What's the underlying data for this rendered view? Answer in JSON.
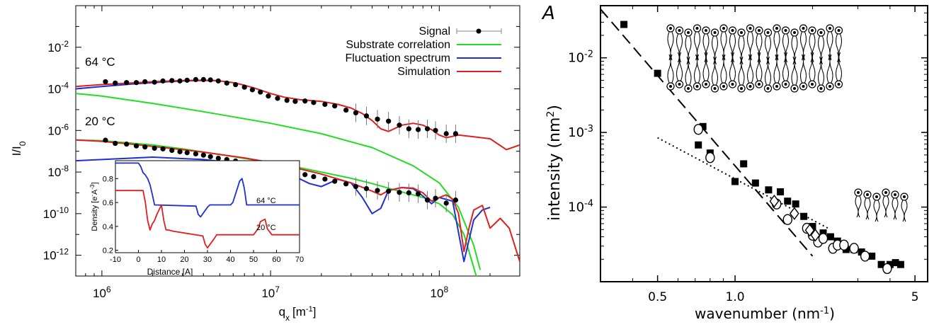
{
  "chart_data": [
    {
      "type": "scatter",
      "xlabel": "q",
      "xlabel_sub": "x",
      "xlabel_unit": "[m",
      "xlabel_unit_sup": "-1",
      "xlabel_close": "]",
      "ylabel": "I/I",
      "ylabel_sub": "0",
      "x_scale": "log",
      "y_scale": "log",
      "xlim": [
        700000,
        300000000
      ],
      "ylim": [
        1e-13,
        1
      ],
      "x_ticks": [
        {
          "value": 1000000,
          "base": "10",
          "exp": "6"
        },
        {
          "value": 10000000,
          "base": "10",
          "exp": "7"
        },
        {
          "value": 100000000,
          "base": "10",
          "exp": "8"
        }
      ],
      "y_ticks": [
        {
          "value": 0.01,
          "base": "10",
          "exp": "-2"
        },
        {
          "value": 0.0001,
          "base": "10",
          "exp": "-4"
        },
        {
          "value": 1e-06,
          "base": "10",
          "exp": "-6"
        },
        {
          "value": 1e-08,
          "base": "10",
          "exp": "-8"
        },
        {
          "value": 1e-10,
          "base": "10",
          "exp": "-10"
        },
        {
          "value": 1e-12,
          "base": "10",
          "exp": "-12"
        }
      ],
      "legend_position": "top-right",
      "legend": [
        {
          "label": "Signal",
          "color": "#000000",
          "kind": "marker"
        },
        {
          "label": "Substrate correlation",
          "color": "#22dd22",
          "kind": "line"
        },
        {
          "label": "Fluctuation spectrum",
          "color": "#1f2fd0",
          "kind": "line"
        },
        {
          "label": "Simulation",
          "color": "#dd2020",
          "kind": "line"
        }
      ],
      "annotations": [
        {
          "text": "64 °C",
          "x": 950000,
          "y": 0.0011
        },
        {
          "text": "20 °C",
          "x": 950000,
          "y": 1.8e-06
        }
      ],
      "series": [
        {
          "name": "Signal",
          "group": "64 °C",
          "color": "#000000",
          "kind": "points",
          "x": [
            1050000,
            1200000,
            1400000,
            1600000,
            1800000,
            2050000,
            2300000,
            2600000,
            2900000,
            3200000,
            3600000,
            4000000,
            4400000,
            4900000,
            5500000,
            6200000,
            7000000,
            7800000,
            8700000,
            9700000,
            11000000,
            12500000,
            14000000,
            16000000,
            18000000,
            21000000,
            24000000,
            28000000,
            32000000,
            37000000,
            43000000,
            50000000,
            58000000,
            66000000,
            75000000,
            85000000,
            95000000,
            110000000,
            125000000
          ],
          "y": [
            0.00022,
            0.00019,
            0.0002,
            0.0002,
            0.00022,
            0.00021,
            0.00024,
            0.00025,
            0.00024,
            0.00026,
            0.00028,
            0.00028,
            0.00027,
            0.00024,
            0.00019,
            0.00016,
            0.00012,
            9e-05,
            7e-05,
            4.5e-05,
            3.5e-05,
            2.8e-05,
            2.5e-05,
            2.6e-05,
            2.2e-05,
            1.8e-05,
            1.5e-05,
            9.5e-06,
            7e-06,
            5e-06,
            3.5e-06,
            2.8e-06,
            1.8e-06,
            1.2e-06,
            1.1e-06,
            1.2e-06,
            1e-06,
            7e-07,
            7e-07
          ]
        },
        {
          "name": "Signal",
          "group": "20 °C",
          "color": "#000000",
          "kind": "points",
          "x": [
            1050000,
            1200000,
            1400000,
            1600000,
            1800000,
            2050000,
            2300000,
            2600000,
            2900000,
            3200000,
            3600000,
            4000000,
            4400000,
            4900000,
            5500000,
            6200000,
            7000000,
            7800000,
            8700000,
            9700000,
            11000000,
            12500000,
            14000000,
            16000000,
            18000000,
            21000000,
            24000000,
            28000000,
            32000000,
            37000000,
            43000000,
            50000000,
            58000000,
            66000000,
            75000000,
            85000000,
            95000000,
            110000000,
            125000000
          ],
          "y": [
            3.4e-07,
            2.4e-07,
            2.2e-07,
            1.8e-07,
            1.6e-07,
            1.4e-07,
            1.3e-07,
            1.1e-07,
            9.5e-08,
            8.5e-08,
            7.5e-08,
            6.5e-08,
            5.5e-08,
            4.6e-08,
            4e-08,
            3.4e-08,
            2.8e-08,
            2.4e-08,
            2e-08,
            1.7e-08,
            1.4e-08,
            1.15e-08,
            9.5e-09,
            7.5e-09,
            6e-09,
            4.6e-09,
            3.6e-09,
            2.7e-09,
            2e-09,
            1.6e-09,
            1.3e-09,
            1.2e-09,
            1.05e-09,
            1e-09,
            9e-10,
            4.5e-10,
            5.5e-10,
            3.2e-10,
            4.5e-10
          ]
        },
        {
          "name": "Simulation",
          "group": "64 °C",
          "color": "#dd2020",
          "kind": "line",
          "x": [
            700000,
            1000000,
            1500000,
            2000000,
            3000000,
            4000000,
            5000000,
            6000000,
            7000000,
            8000000,
            10000000,
            12000000,
            15000000,
            20000000,
            25000000,
            30000000,
            35000000,
            40000000,
            45000000,
            50000000,
            55000000,
            60000000,
            70000000,
            80000000,
            90000000,
            100000000,
            110000000,
            130000000,
            160000000,
            200000000,
            250000000,
            300000000
          ],
          "y": [
            0.00013,
            0.00016,
            0.00019,
            0.00022,
            0.00025,
            0.00026,
            0.00024,
            0.0002,
            0.00015,
            0.00011,
            6e-05,
            4e-05,
            3e-05,
            2.5e-05,
            1.8e-05,
            1.2e-05,
            6.5e-06,
            3e-06,
            1.2e-06,
            9e-07,
            1.3e-06,
            1.8e-06,
            2.2e-06,
            1.8e-06,
            1.1e-06,
            6e-07,
            4.5e-07,
            6e-07,
            5e-07,
            4e-07,
            1.2e-07,
            2e-07
          ]
        },
        {
          "name": "Fluctuation spectrum",
          "group": "64 °C",
          "color": "#1f2fd0",
          "kind": "line",
          "x": [
            700000,
            1000000,
            1500000,
            2000000,
            3000000,
            4000000,
            5000000
          ],
          "y": [
            0.0001,
            0.00013,
            0.00017,
            0.0002,
            0.00024,
            0.00025,
            0.00025
          ]
        },
        {
          "name": "Substrate correlation",
          "group": "64 °C",
          "color": "#22dd22",
          "kind": "line",
          "x": [
            700000,
            1000000,
            2000000,
            4000000,
            10000000,
            20000000,
            40000000,
            70000000,
            100000000,
            130000000,
            160000000,
            175000000
          ],
          "y": [
            6e-05,
            4.5e-05,
            2e-05,
            8e-06,
            2.2e-06,
            7e-07,
            1.5e-07,
            2e-08,
            3e-09,
            2e-10,
            3e-12,
            2e-13
          ]
        },
        {
          "name": "Simulation",
          "group": "20 °C",
          "color": "#dd2020",
          "kind": "line",
          "x": [
            700000,
            1000000,
            1500000,
            2000000,
            3000000,
            4000000,
            5000000,
            7000000,
            10000000,
            15000000,
            20000000,
            30000000,
            40000000,
            45000000,
            50000000,
            60000000,
            70000000,
            80000000,
            90000000,
            100000000,
            110000000,
            120000000,
            130000000,
            140000000,
            150000000,
            160000000,
            180000000,
            200000000,
            230000000,
            260000000,
            300000000
          ],
          "y": [
            3.5e-07,
            3e-07,
            2.2e-07,
            1.7e-07,
            1.2e-07,
            9e-08,
            7e-08,
            4.8e-08,
            2.9e-08,
            1.4e-08,
            8e-09,
            3e-09,
            1.2e-09,
            8e-10,
            1.3e-09,
            1.8e-09,
            1.7e-09,
            1e-09,
            4e-10,
            6e-10,
            8e-10,
            5e-10,
            1e-10,
            1.5e-12,
            2e-11,
            1.5e-10,
            2.5e-10,
            2e-11,
            6e-11,
            2e-11,
            5e-13
          ]
        },
        {
          "name": "Fluctuation spectrum",
          "group": "20 °C",
          "color": "#1f2fd0",
          "kind": "line",
          "x": [
            700000,
            1000000,
            2000000,
            4000000,
            7000000,
            10000000,
            14000000,
            17000000,
            20000000,
            25000000,
            30000000,
            35000000,
            40000000,
            45000000,
            50000000,
            60000000,
            70000000,
            80000000,
            90000000,
            100000000,
            120000000,
            140000000,
            160000000,
            180000000,
            200000000
          ],
          "y": [
            3.5e-08,
            4e-08,
            5.2e-08,
            4e-08,
            2.5e-08,
            1.5e-08,
            6e-09,
            2.8e-09,
            2e-09,
            4.5e-09,
            3e-09,
            6e-10,
            1e-10,
            1.8e-10,
            1.3e-09,
            1.8e-09,
            1.6e-09,
            7e-10,
            3e-10,
            6e-10,
            4e-10,
            5e-13,
            5e-11,
            1.5e-10,
            2e-10
          ]
        },
        {
          "name": "Substrate correlation",
          "group": "20 °C",
          "color": "#22dd22",
          "kind": "line",
          "x": [
            700000,
            1000000,
            2000000,
            3000000,
            5000000,
            7000000,
            10000000,
            15000000,
            20000000,
            30000000,
            40000000,
            60000000,
            80000000,
            100000000,
            120000000,
            140000000,
            170000000
          ],
          "y": [
            3.5e-07,
            3.2e-07,
            2e-07,
            1.3e-07,
            7e-08,
            4.5e-08,
            3e-08,
            1.6e-08,
            1e-08,
            5e-09,
            2.8e-09,
            1.1e-09,
            6e-10,
            3e-10,
            9e-11,
            1e-11,
            5e-14
          ]
        }
      ],
      "inset": {
        "type": "line",
        "xlabel": "Distance [A]",
        "ylabel_prefix": "Density [e",
        "ylabel_sup1": "-",
        "ylabel_mid": "A",
        "ylabel_sup2": "-3",
        "ylabel_suffix": "]",
        "xlim": [
          -10,
          70
        ],
        "ylim": [
          0.18,
          0.95
        ],
        "x_ticks": [
          "-10",
          "0",
          "10",
          "20",
          "30",
          "40",
          "50",
          "60",
          "70"
        ],
        "y_ticks": [
          "0.2",
          "0.4",
          "0.6",
          "0.8"
        ],
        "series": [
          {
            "name": "64 °C",
            "color": "#1f2fd0",
            "x": [
              -10,
              0,
              1,
              2,
              3,
              4,
              5,
              6,
              7,
              25,
              26,
              27,
              30,
              31,
              33,
              40,
              41,
              43,
              44,
              45,
              46,
              47,
              50,
              70
            ],
            "y": [
              0.93,
              0.93,
              0.9,
              0.85,
              0.83,
              0.8,
              0.75,
              0.67,
              0.58,
              0.57,
              0.5,
              0.48,
              0.56,
              0.58,
              0.58,
              0.58,
              0.6,
              0.72,
              0.78,
              0.8,
              0.72,
              0.58,
              0.58,
              0.58
            ]
          },
          {
            "name": "20 °C",
            "color": "#dd2020",
            "x": [
              -10,
              0,
              2,
              3,
              4,
              5,
              6,
              7,
              8,
              10,
              11,
              12,
              13,
              15,
              28,
              29,
              30,
              33,
              34,
              35,
              50,
              52,
              53,
              55,
              56,
              58,
              70
            ],
            "y": [
              0.7,
              0.7,
              0.7,
              0.6,
              0.45,
              0.37,
              0.42,
              0.45,
              0.5,
              0.58,
              0.45,
              0.37,
              0.37,
              0.36,
              0.32,
              0.25,
              0.22,
              0.3,
              0.33,
              0.33,
              0.33,
              0.38,
              0.44,
              0.46,
              0.38,
              0.33,
              0.33
            ]
          }
        ]
      }
    },
    {
      "type": "scatter",
      "panel_label": "A",
      "xlabel": "wavenumber (nm",
      "xlabel_sup": "-1",
      "xlabel_close": ")",
      "ylabel": "intensity (nm",
      "ylabel_sup": "2",
      "ylabel_close": ")",
      "x_scale": "log",
      "y_scale": "log",
      "xlim": [
        0.3,
        5.6
      ],
      "ylim": [
        1e-05,
        0.05
      ],
      "x_ticks": [
        {
          "value": 0.5,
          "label": "0.5"
        },
        {
          "value": 1.0,
          "label": "1.0"
        },
        {
          "value": 5,
          "label": "5"
        }
      ],
      "y_ticks": [
        {
          "value": 0.01,
          "base": "10",
          "exp": "-2"
        },
        {
          "value": 0.001,
          "base": "10",
          "exp": "-3"
        },
        {
          "value": 0.0001,
          "base": "10",
          "exp": "-4"
        }
      ],
      "series": [
        {
          "marker": "filled-square",
          "x": [
            0.37,
            0.5,
            0.72,
            0.75,
            0.8,
            1.0,
            1.08,
            1.2,
            1.35,
            1.5,
            1.6,
            1.72,
            1.85,
            2.0,
            2.2,
            2.35,
            2.5,
            2.7,
            2.9,
            3.1,
            3.4,
            3.7,
            4.0,
            4.2,
            4.4
          ],
          "y": [
            0.028,
            0.0062,
            0.00068,
            0.0012,
            0.00053,
            0.00022,
            0.00038,
            0.00021,
            0.00017,
            0.00016,
            0.00012,
            0.00011,
            7.5e-05,
            5.5e-05,
            4.5e-05,
            4e-05,
            3.5e-05,
            2.7e-05,
            2.7e-05,
            2.5e-05,
            2.2e-05,
            1.7e-05,
            1.7e-05,
            1.8e-05,
            1.7e-05
          ]
        },
        {
          "marker": "open-circle",
          "x": [
            0.72,
            0.8,
            1.45,
            1.6,
            1.9,
            2.0,
            2.1,
            2.2,
            2.4,
            2.5,
            2.65,
            2.9,
            3.2,
            3.9
          ],
          "y": [
            0.0011,
            0.00046,
            0.00011,
            6.8e-05,
            5.2e-05,
            4.2e-05,
            3.4e-05,
            3.8e-05,
            2.8e-05,
            3.1e-05,
            3.1e-05,
            2.8e-05,
            2.2e-05,
            1.5e-05
          ]
        },
        {
          "marker": "open-diamond",
          "x": [
            1.42,
            1.7,
            1.95,
            2.05
          ],
          "y": [
            0.00012,
            8.2e-05,
            4.9e-05,
            4.2e-05
          ]
        },
        {
          "name": "dashed fit",
          "style": "dashed",
          "x": [
            0.3,
            2.0
          ],
          "y": [
            0.045,
            2.2e-05
          ]
        },
        {
          "name": "dotted fit",
          "style": "dotted",
          "x": [
            0.5,
            2.3
          ],
          "y": [
            0.00085,
            5.2e-05
          ]
        }
      ]
    }
  ]
}
